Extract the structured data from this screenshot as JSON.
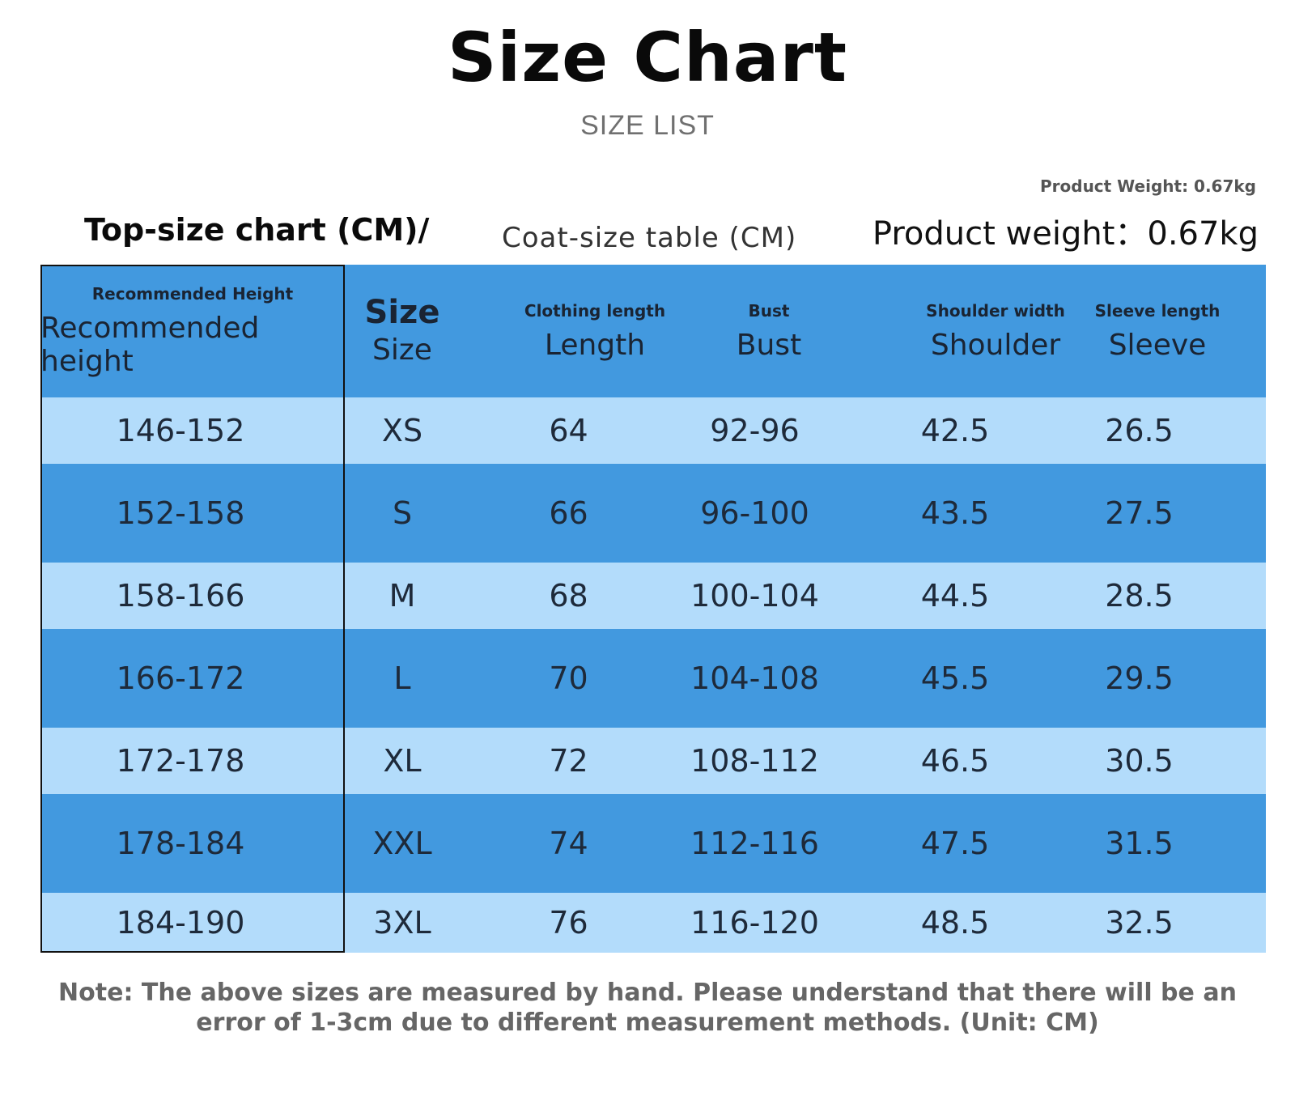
{
  "title": "Size Chart",
  "subtitle": "SIZE LIST",
  "weight": {
    "small": "Product Weight: 0.67kg",
    "big": "Product weight：0.67kg"
  },
  "chart_title": "Top-size chart (CM)/",
  "coat_title": "Coat-size table (CM)",
  "headers": {
    "height": {
      "small": "Recommended Height",
      "big": "Recommended height"
    },
    "size": {
      "small": "Size",
      "big": "Size"
    },
    "length": {
      "small": "Clothing length",
      "big": "Length"
    },
    "bust": {
      "small": "Bust",
      "big": "Bust"
    },
    "shoulder": {
      "small": "Shoulder width",
      "big": "Shoulder"
    },
    "sleeve": {
      "small": "Sleeve length",
      "big": "Sleeve"
    }
  },
  "rows": [
    {
      "height": "146-152",
      "size": "XS",
      "length": "64",
      "bust": "92-96",
      "shoulder": "42.5",
      "sleeve": "26.5"
    },
    {
      "height": "152-158",
      "size": "S",
      "length": "66",
      "bust": "96-100",
      "shoulder": "43.5",
      "sleeve": "27.5"
    },
    {
      "height": "158-166",
      "size": "M",
      "length": "68",
      "bust": "100-104",
      "shoulder": "44.5",
      "sleeve": "28.5"
    },
    {
      "height": "166-172",
      "size": "L",
      "length": "70",
      "bust": "104-108",
      "shoulder": "45.5",
      "sleeve": "29.5"
    },
    {
      "height": "172-178",
      "size": "XL",
      "length": "72",
      "bust": "108-112",
      "shoulder": "46.5",
      "sleeve": "30.5"
    },
    {
      "height": "178-184",
      "size": "XXL",
      "length": "74",
      "bust": "112-116",
      "shoulder": "47.5",
      "sleeve": "31.5"
    },
    {
      "height": "184-190",
      "size": "3XL",
      "length": "76",
      "bust": "116-120",
      "shoulder": "48.5",
      "sleeve": "32.5"
    }
  ],
  "note": {
    "line1": "Note: The above sizes are measured by hand. Please understand that there will be an",
    "line2": "error of 1-3cm due to different measurement methods. (Unit: CM)"
  }
}
